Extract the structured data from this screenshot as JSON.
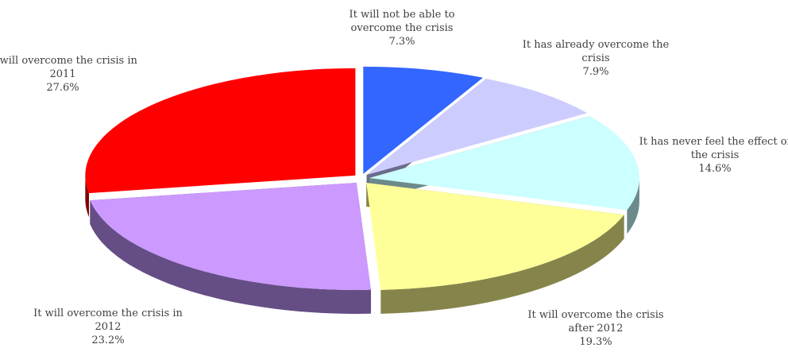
{
  "chart_data": {
    "type": "pie",
    "style": "3d-exploded",
    "slices": [
      {
        "label_lines": [
          "It will not be able to",
          "overcome the crisis"
        ],
        "value": 7.3,
        "value_label": "7.3%",
        "color": "#3366FF",
        "side_color": "#1F3A8F"
      },
      {
        "label_lines": [
          "It has already overcome the",
          "crisis"
        ],
        "value": 7.9,
        "value_label": "7.9%",
        "color": "#CCCCFF",
        "side_color": "#6B6B8C"
      },
      {
        "label_lines": [
          "It has never feel the effect of",
          "the crisis"
        ],
        "value": 14.6,
        "value_label": "14.6%",
        "color": "#CCFFFF",
        "side_color": "#6C8A8A"
      },
      {
        "label_lines": [
          "It will overcome the crisis",
          "after 2012"
        ],
        "value": 19.3,
        "value_label": "19.3%",
        "color": "#FFFF99",
        "side_color": "#85854B"
      },
      {
        "label_lines": [
          "It will overcome the crisis in",
          "2012"
        ],
        "value": 23.2,
        "value_label": "23.2%",
        "color": "#CC99FF",
        "side_color": "#654E85"
      },
      {
        "label_lines": [
          "It will overcome the crisis in",
          "2011"
        ],
        "value": 27.6,
        "value_label": "27.6%",
        "color": "#FF0000",
        "side_color": "#800000"
      }
    ]
  }
}
